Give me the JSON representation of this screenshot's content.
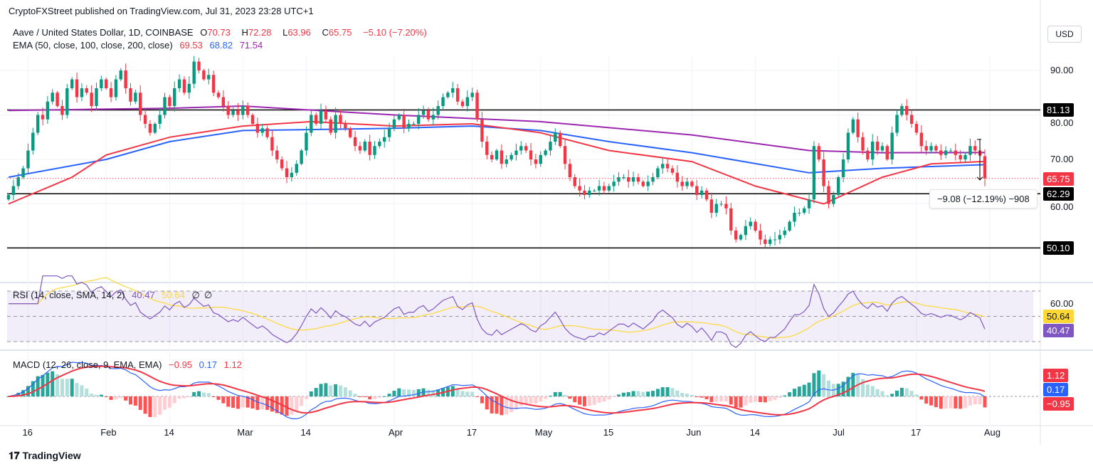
{
  "header": {
    "published": "CryptoFXStreet published on TradingView.com, Jul 31, 2023 23:28 UTC+1",
    "symbol": "Aave / United States Dollar, 1D, COINBASE",
    "o_label": "O",
    "o": "70.73",
    "h_label": "H",
    "h": "72.28",
    "l_label": "L",
    "l": "63.96",
    "c_label": "C",
    "c": "65.75",
    "change": "−5.10 (−7.20%)",
    "ema_label": "EMA (50, close, 100, close, 200, close)",
    "ema50": "69.53",
    "ema100": "68.82",
    "ema200": "71.54",
    "currency_button": "USD"
  },
  "rsi_legend": {
    "label": "RSI (14, close, SMA, 14, 2)",
    "rsi": "40.47",
    "sma": "50.64",
    "extra1": "∅",
    "extra2": "∅"
  },
  "macd_legend": {
    "label": "MACD (12, 26, close, 9, EMA, EMA)",
    "hist": "−0.95",
    "macd": "0.17",
    "signal": "1.12"
  },
  "measure_label": "−9.08 (−12.19%) −908",
  "footer": {
    "logo_text": "TradingView"
  },
  "colors": {
    "up": "#089981",
    "down": "#f23645",
    "ema50": "#f23645",
    "ema100": "#2962ff",
    "ema200": "#9c27b0",
    "rsi": "#7e57c2",
    "rsi_sma": "#fdd835",
    "macd": "#2962ff",
    "signal": "#f23645"
  },
  "chart_data": {
    "type": "candlestick",
    "start_date": "2023-01-12",
    "interval": "1D",
    "ohlc_last": {
      "open": 70.73,
      "high": 72.28,
      "low": 63.96,
      "close": 65.75
    },
    "closes": [
      62,
      64,
      66,
      68,
      72,
      76,
      80,
      79,
      83,
      85,
      82,
      80,
      86,
      88,
      84,
      86,
      85,
      82,
      86,
      88,
      86,
      84,
      88,
      90,
      86,
      83,
      85,
      80,
      78,
      76,
      78,
      80,
      84,
      82,
      86,
      88,
      85,
      87,
      92,
      90,
      88,
      89,
      85,
      84,
      82,
      80,
      81,
      80,
      82,
      80,
      78,
      76,
      77,
      75,
      72,
      70,
      68,
      66,
      67,
      69,
      72,
      76,
      80,
      78,
      81,
      79,
      76,
      80,
      78,
      77,
      75,
      73,
      72,
      74,
      71,
      73,
      74,
      75,
      77,
      79,
      80,
      77,
      78,
      78,
      80,
      81,
      79,
      80,
      82,
      84,
      85,
      86,
      83,
      82,
      84,
      85,
      79,
      74,
      71,
      70,
      72,
      69,
      70,
      71,
      72,
      73,
      72,
      70,
      69,
      71,
      72,
      74,
      76,
      73,
      69,
      66,
      64,
      63,
      62,
      63,
      63,
      64,
      63,
      64,
      65,
      66,
      66,
      65,
      66,
      65,
      64,
      65,
      66,
      68,
      69,
      68,
      67,
      65,
      64,
      65,
      64,
      62,
      63,
      61,
      58,
      60,
      60,
      59,
      54,
      52,
      53,
      55,
      56,
      54,
      52,
      51,
      52,
      52,
      53,
      54,
      56,
      58,
      58,
      59,
      61,
      73,
      70,
      64,
      60,
      62,
      66,
      70,
      76,
      79,
      75,
      72,
      70,
      74,
      72,
      73,
      70,
      76,
      80,
      82,
      80,
      78,
      76,
      73,
      72,
      73,
      72,
      71,
      72,
      72,
      71,
      70,
      71,
      73,
      72,
      70.85,
      65.75
    ],
    "ema_series": [
      {
        "name": "EMA 50",
        "points": [
          [
            "2023-01-12",
            60
          ],
          [
            "2023-01-25",
            66
          ],
          [
            "2023-02-01",
            71
          ],
          [
            "2023-02-14",
            75
          ],
          [
            "2023-03-01",
            77.5
          ],
          [
            "2023-03-15",
            78.5
          ],
          [
            "2023-04-01",
            77.5
          ],
          [
            "2023-04-17",
            78
          ],
          [
            "2023-05-01",
            76
          ],
          [
            "2023-05-15",
            72
          ],
          [
            "2023-06-01",
            69.5
          ],
          [
            "2023-06-14",
            64
          ],
          [
            "2023-06-28",
            60
          ],
          [
            "2023-07-10",
            66
          ],
          [
            "2023-07-20",
            69
          ],
          [
            "2023-07-31",
            69.53
          ]
        ]
      },
      {
        "name": "EMA 100",
        "points": [
          [
            "2023-01-12",
            66
          ],
          [
            "2023-02-01",
            70
          ],
          [
            "2023-02-14",
            74
          ],
          [
            "2023-03-01",
            76.5
          ],
          [
            "2023-04-01",
            77
          ],
          [
            "2023-04-17",
            77.5
          ],
          [
            "2023-05-01",
            76.5
          ],
          [
            "2023-05-15",
            74
          ],
          [
            "2023-06-01",
            71.5
          ],
          [
            "2023-06-25",
            67
          ],
          [
            "2023-07-10",
            68
          ],
          [
            "2023-07-31",
            68.82
          ]
        ]
      },
      {
        "name": "EMA 200",
        "points": [
          [
            "2023-01-12",
            81
          ],
          [
            "2023-02-14",
            81.5
          ],
          [
            "2023-03-01",
            82
          ],
          [
            "2023-04-01",
            80
          ],
          [
            "2023-05-01",
            78.5
          ],
          [
            "2023-06-01",
            75.5
          ],
          [
            "2023-06-25",
            72
          ],
          [
            "2023-07-10",
            71.5
          ],
          [
            "2023-07-31",
            71.54
          ]
        ]
      }
    ],
    "horizontal_levels": [
      "81.13",
      "62.29",
      "50.10"
    ],
    "last_price": "65.75",
    "price_ticks": [
      "90.00",
      "80.00",
      "70.00",
      "60.00"
    ],
    "ylim": [
      45,
      96
    ],
    "rsi": {
      "ticks": [
        "60.00"
      ],
      "bands": [
        30,
        70
      ],
      "mid": 50,
      "last": "40.47",
      "last_sma": "50.64"
    },
    "macd": {
      "last_hist": "−0.95",
      "last_macd": "0.17",
      "last_signal": "1.12"
    },
    "x_ticks": [
      {
        "label": "16",
        "date": "2023-01-16"
      },
      {
        "label": "Feb",
        "date": "2023-02-01"
      },
      {
        "label": "14",
        "date": "2023-02-14"
      },
      {
        "label": "Mar",
        "date": "2023-03-01"
      },
      {
        "label": "14",
        "date": "2023-03-14"
      },
      {
        "label": "Apr",
        "date": "2023-04-01"
      },
      {
        "label": "17",
        "date": "2023-04-17"
      },
      {
        "label": "May",
        "date": "2023-05-01"
      },
      {
        "label": "15",
        "date": "2023-05-15"
      },
      {
        "label": "Jun",
        "date": "2023-06-01"
      },
      {
        "label": "14",
        "date": "2023-06-14"
      },
      {
        "label": "Jul",
        "date": "2023-07-01"
      },
      {
        "label": "17",
        "date": "2023-07-17"
      },
      {
        "label": "Aug",
        "date": "2023-08-01"
      }
    ]
  }
}
